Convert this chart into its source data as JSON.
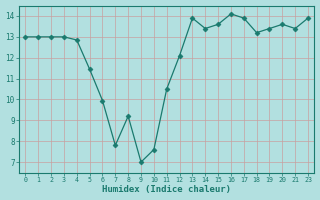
{
  "x": [
    0,
    1,
    2,
    3,
    4,
    5,
    6,
    7,
    8,
    9,
    10,
    11,
    12,
    13,
    14,
    15,
    16,
    17,
    18,
    19,
    20,
    21,
    22
  ],
  "y": [
    13.0,
    13.0,
    13.0,
    13.0,
    12.85,
    11.45,
    9.95,
    7.8,
    9.2,
    7.0,
    7.6,
    10.5,
    12.1,
    13.9,
    13.4,
    13.6,
    14.1,
    13.9,
    13.2,
    13.4,
    13.6,
    13.4,
    13.9
  ],
  "line_color": "#1a7a6e",
  "marker": "D",
  "marker_size": 2.5,
  "bg_color": "#b2e0e0",
  "grid_color": "#c8a0a0",
  "xlabel": "Humidex (Indice chaleur)",
  "xlim": [
    -0.5,
    22.5
  ],
  "ylim": [
    6.5,
    14.5
  ],
  "yticks": [
    7,
    8,
    9,
    10,
    11,
    12,
    13,
    14
  ],
  "xticks": [
    0,
    1,
    2,
    3,
    4,
    5,
    6,
    7,
    8,
    9,
    10,
    11,
    12,
    13,
    14,
    15,
    16,
    17,
    18,
    19,
    20,
    21,
    22
  ],
  "xtick_labels": [
    "0",
    "1",
    "2",
    "3",
    "4",
    "5",
    "6",
    "7",
    "8",
    "9",
    "10",
    "11",
    "12",
    "13",
    "14",
    "15",
    "16",
    "17",
    "18",
    "19",
    "20",
    "21",
    "23"
  ],
  "tick_color": "#1a7a6e",
  "label_color": "#1a7a6e",
  "spine_color": "#1a7a6e"
}
